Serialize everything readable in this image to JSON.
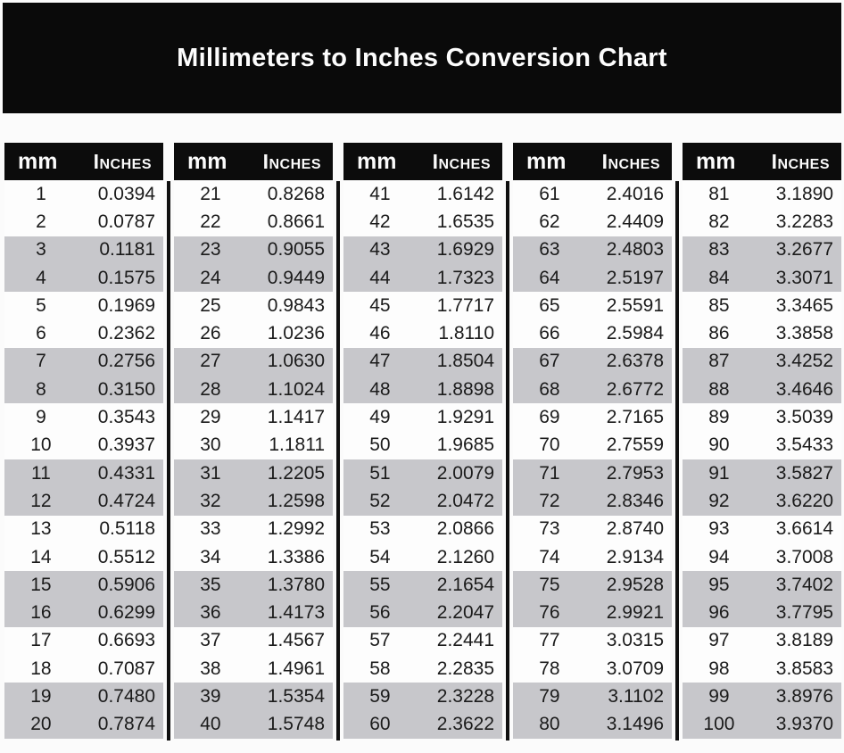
{
  "title": "Millimeters to Inches Conversion Chart",
  "column_headers": {
    "mm": "mm",
    "inches": "Inches"
  },
  "colors": {
    "banner_bg": "#0a0a0a",
    "header_bg": "#0c0c0c",
    "stripe_gray": "#c7c7cb",
    "row_white": "#fdfdfd",
    "title_text": "#fdfdfd",
    "body_text": "#1b1b1b"
  },
  "tables": [
    {
      "mm_range": "1-20",
      "rows": [
        [
          "1",
          "0.0394"
        ],
        [
          "2",
          "0.0787"
        ],
        [
          "3",
          "0.1181"
        ],
        [
          "4",
          "0.1575"
        ],
        [
          "5",
          "0.1969"
        ],
        [
          "6",
          "0.2362"
        ],
        [
          "7",
          "0.2756"
        ],
        [
          "8",
          "0.3150"
        ],
        [
          "9",
          "0.3543"
        ],
        [
          "10",
          "0.3937"
        ],
        [
          "11",
          "0.4331"
        ],
        [
          "12",
          "0.4724"
        ],
        [
          "13",
          "0.5118"
        ],
        [
          "14",
          "0.5512"
        ],
        [
          "15",
          "0.5906"
        ],
        [
          "16",
          "0.6299"
        ],
        [
          "17",
          "0.6693"
        ],
        [
          "18",
          "0.7087"
        ],
        [
          "19",
          "0.7480"
        ],
        [
          "20",
          "0.7874"
        ]
      ]
    },
    {
      "mm_range": "21-40",
      "rows": [
        [
          "21",
          "0.8268"
        ],
        [
          "22",
          "0.8661"
        ],
        [
          "23",
          "0.9055"
        ],
        [
          "24",
          "0.9449"
        ],
        [
          "25",
          "0.9843"
        ],
        [
          "26",
          "1.0236"
        ],
        [
          "27",
          "1.0630"
        ],
        [
          "28",
          "1.1024"
        ],
        [
          "29",
          "1.1417"
        ],
        [
          "30",
          "1.1811"
        ],
        [
          "31",
          "1.2205"
        ],
        [
          "32",
          "1.2598"
        ],
        [
          "33",
          "1.2992"
        ],
        [
          "34",
          "1.3386"
        ],
        [
          "35",
          "1.3780"
        ],
        [
          "36",
          "1.4173"
        ],
        [
          "37",
          "1.4567"
        ],
        [
          "38",
          "1.4961"
        ],
        [
          "39",
          "1.5354"
        ],
        [
          "40",
          "1.5748"
        ]
      ]
    },
    {
      "mm_range": "41-60",
      "rows": [
        [
          "41",
          "1.6142"
        ],
        [
          "42",
          "1.6535"
        ],
        [
          "43",
          "1.6929"
        ],
        [
          "44",
          "1.7323"
        ],
        [
          "45",
          "1.7717"
        ],
        [
          "46",
          "1.8110"
        ],
        [
          "47",
          "1.8504"
        ],
        [
          "48",
          "1.8898"
        ],
        [
          "49",
          "1.9291"
        ],
        [
          "50",
          "1.9685"
        ],
        [
          "51",
          "2.0079"
        ],
        [
          "52",
          "2.0472"
        ],
        [
          "53",
          "2.0866"
        ],
        [
          "54",
          "2.1260"
        ],
        [
          "55",
          "2.1654"
        ],
        [
          "56",
          "2.2047"
        ],
        [
          "57",
          "2.2441"
        ],
        [
          "58",
          "2.2835"
        ],
        [
          "59",
          "2.3228"
        ],
        [
          "60",
          "2.3622"
        ]
      ]
    },
    {
      "mm_range": "61-80",
      "rows": [
        [
          "61",
          "2.4016"
        ],
        [
          "62",
          "2.4409"
        ],
        [
          "63",
          "2.4803"
        ],
        [
          "64",
          "2.5197"
        ],
        [
          "65",
          "2.5591"
        ],
        [
          "66",
          "2.5984"
        ],
        [
          "67",
          "2.6378"
        ],
        [
          "68",
          "2.6772"
        ],
        [
          "69",
          "2.7165"
        ],
        [
          "70",
          "2.7559"
        ],
        [
          "71",
          "2.7953"
        ],
        [
          "72",
          "2.8346"
        ],
        [
          "73",
          "2.8740"
        ],
        [
          "74",
          "2.9134"
        ],
        [
          "75",
          "2.9528"
        ],
        [
          "76",
          "2.9921"
        ],
        [
          "77",
          "3.0315"
        ],
        [
          "78",
          "3.0709"
        ],
        [
          "79",
          "3.1102"
        ],
        [
          "80",
          "3.1496"
        ]
      ]
    },
    {
      "mm_range": "81-100",
      "rows": [
        [
          "81",
          "3.1890"
        ],
        [
          "82",
          "3.2283"
        ],
        [
          "83",
          "3.2677"
        ],
        [
          "84",
          "3.3071"
        ],
        [
          "85",
          "3.3465"
        ],
        [
          "86",
          "3.3858"
        ],
        [
          "87",
          "3.4252"
        ],
        [
          "88",
          "3.4646"
        ],
        [
          "89",
          "3.5039"
        ],
        [
          "90",
          "3.5433"
        ],
        [
          "91",
          "3.5827"
        ],
        [
          "92",
          "3.6220"
        ],
        [
          "93",
          "3.6614"
        ],
        [
          "94",
          "3.7008"
        ],
        [
          "95",
          "3.7402"
        ],
        [
          "96",
          "3.7795"
        ],
        [
          "97",
          "3.8189"
        ],
        [
          "98",
          "3.8583"
        ],
        [
          "99",
          "3.8976"
        ],
        [
          "100",
          "3.9370"
        ]
      ]
    }
  ]
}
